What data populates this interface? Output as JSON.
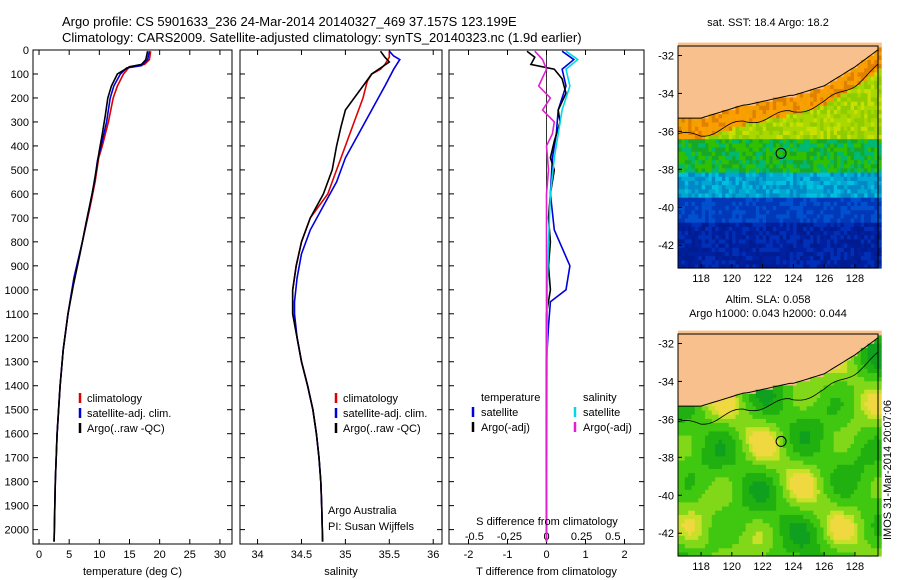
{
  "header": {
    "line1": "Argo profile: CS 5901633_236 24-Mar-2014 20140327_469 37.157S 123.199E",
    "line2": "Climatology: CARS2009. Satellite-adjusted climatology: synTS_20140323.nc (1.9d earlier)"
  },
  "colors": {
    "climatology": "#e00000",
    "satellite": "#0000dd",
    "argo": "#000000",
    "sat_sal": "#00d8e8",
    "argo_sal": "#e020d0",
    "land": "#f8c08c"
  },
  "chart_data": [
    {
      "type": "line",
      "id": "temperature",
      "xlabel": "temperature (deg C)",
      "xlim": [
        -1,
        32
      ],
      "xticks": [
        0,
        5,
        10,
        15,
        20,
        25,
        30
      ],
      "ylim": [
        0,
        2060
      ],
      "yticks": [
        0,
        100,
        200,
        300,
        400,
        500,
        600,
        700,
        800,
        900,
        1000,
        1100,
        1200,
        1300,
        1400,
        1500,
        1600,
        1700,
        1800,
        1900,
        2000
      ],
      "legend": [
        "climatology",
        "satellite-adj. clim.",
        "Argo(..raw -QC)"
      ],
      "series": [
        {
          "name": "climatology",
          "color": "climatology",
          "points": [
            [
              18.5,
              5
            ],
            [
              18.3,
              40
            ],
            [
              17.5,
              60
            ],
            [
              15.0,
              70
            ],
            [
              14.0,
              100
            ],
            [
              13.0,
              150
            ],
            [
              12.3,
              200
            ],
            [
              11.5,
              300
            ],
            [
              10.5,
              400
            ],
            [
              9.9,
              450
            ],
            [
              9.3,
              550
            ],
            [
              8.5,
              650
            ],
            [
              7.2,
              800
            ],
            [
              5.8,
              950
            ],
            [
              4.8,
              1100
            ],
            [
              4.0,
              1250
            ],
            [
              3.5,
              1400
            ],
            [
              3.0,
              1600
            ],
            [
              2.7,
              1800
            ],
            [
              2.5,
              2050
            ]
          ]
        },
        {
          "name": "satellite-adj. clim.",
          "color": "satellite",
          "points": [
            [
              18.3,
              5
            ],
            [
              18.0,
              40
            ],
            [
              17.0,
              65
            ],
            [
              14.5,
              75
            ],
            [
              13.5,
              100
            ],
            [
              12.4,
              150
            ],
            [
              11.8,
              200
            ],
            [
              11.2,
              300
            ],
            [
              10.3,
              400
            ],
            [
              9.7,
              460
            ],
            [
              9.2,
              550
            ],
            [
              8.4,
              650
            ],
            [
              7.2,
              800
            ],
            [
              5.8,
              950
            ],
            [
              4.8,
              1100
            ],
            [
              4.0,
              1250
            ],
            [
              3.5,
              1400
            ],
            [
              3.0,
              1600
            ],
            [
              2.7,
              1800
            ],
            [
              2.5,
              2050
            ]
          ]
        },
        {
          "name": "Argo(..raw -QC)",
          "color": "argo",
          "points": [
            [
              18.0,
              5
            ],
            [
              17.7,
              40
            ],
            [
              17.0,
              60
            ],
            [
              15.0,
              70
            ],
            [
              14.3,
              80
            ],
            [
              13.0,
              100
            ],
            [
              12.0,
              150
            ],
            [
              11.4,
              200
            ],
            [
              11.0,
              270
            ],
            [
              10.5,
              350
            ],
            [
              10.0,
              420
            ],
            [
              9.5,
              500
            ],
            [
              8.8,
              600
            ],
            [
              7.8,
              720
            ],
            [
              6.8,
              850
            ],
            [
              5.7,
              980
            ],
            [
              4.8,
              1100
            ],
            [
              4.0,
              1250
            ],
            [
              3.5,
              1400
            ],
            [
              3.0,
              1600
            ],
            [
              2.7,
              1800
            ],
            [
              2.5,
              2050
            ]
          ]
        }
      ]
    },
    {
      "type": "line",
      "id": "salinity",
      "xlabel": "salinity",
      "xlim": [
        33.8,
        36.1
      ],
      "xticks": [
        34,
        34.5,
        35,
        35.5,
        36
      ],
      "ylim": [
        0,
        2060
      ],
      "legend": [
        "climatology",
        "satellite-adj. clim.",
        "Argo(..raw -QC)"
      ],
      "annotation": [
        "Argo Australia",
        "PI: Susan Wijffels"
      ],
      "series": [
        {
          "name": "climatology",
          "color": "climatology",
          "points": [
            [
              35.5,
              5
            ],
            [
              35.5,
              30
            ],
            [
              35.45,
              60
            ],
            [
              35.4,
              80
            ],
            [
              35.3,
              100
            ],
            [
              35.25,
              130
            ],
            [
              35.2,
              200
            ],
            [
              35.1,
              300
            ],
            [
              35.0,
              400
            ],
            [
              34.9,
              500
            ],
            [
              34.8,
              600
            ],
            [
              34.6,
              700
            ],
            [
              34.5,
              800
            ],
            [
              34.44,
              900
            ],
            [
              34.4,
              1000
            ],
            [
              34.4,
              1100
            ],
            [
              34.45,
              1200
            ],
            [
              34.5,
              1300
            ],
            [
              34.57,
              1400
            ],
            [
              34.63,
              1500
            ],
            [
              34.67,
              1600
            ],
            [
              34.7,
              1700
            ],
            [
              34.72,
              1800
            ],
            [
              34.73,
              1900
            ],
            [
              34.74,
              2050
            ]
          ]
        },
        {
          "name": "satellite-adj. clim.",
          "color": "satellite",
          "points": [
            [
              35.5,
              5
            ],
            [
              35.55,
              25
            ],
            [
              35.62,
              40
            ],
            [
              35.55,
              80
            ],
            [
              35.45,
              150
            ],
            [
              35.3,
              250
            ],
            [
              35.15,
              350
            ],
            [
              35.0,
              450
            ],
            [
              34.9,
              550
            ],
            [
              34.75,
              650
            ],
            [
              34.6,
              750
            ],
            [
              34.5,
              850
            ],
            [
              34.45,
              950
            ],
            [
              34.42,
              1050
            ],
            [
              34.42,
              1100
            ],
            [
              34.45,
              1200
            ],
            [
              34.5,
              1300
            ],
            [
              34.57,
              1400
            ],
            [
              34.63,
              1500
            ],
            [
              34.67,
              1600
            ],
            [
              34.7,
              1700
            ],
            [
              34.72,
              1800
            ],
            [
              34.73,
              1900
            ],
            [
              34.74,
              2050
            ]
          ]
        },
        {
          "name": "Argo(..raw -QC)",
          "color": "argo",
          "points": [
            [
              35.4,
              5
            ],
            [
              35.45,
              30
            ],
            [
              35.5,
              50
            ],
            [
              35.4,
              75
            ],
            [
              35.3,
              100
            ],
            [
              35.2,
              150
            ],
            [
              35.1,
              200
            ],
            [
              35.0,
              250
            ],
            [
              34.95,
              320
            ],
            [
              34.9,
              400
            ],
            [
              34.85,
              500
            ],
            [
              34.75,
              600
            ],
            [
              34.6,
              700
            ],
            [
              34.5,
              800
            ],
            [
              34.44,
              900
            ],
            [
              34.4,
              1000
            ],
            [
              34.4,
              1100
            ],
            [
              34.45,
              1200
            ],
            [
              34.5,
              1300
            ],
            [
              34.57,
              1400
            ],
            [
              34.63,
              1500
            ],
            [
              34.67,
              1600
            ],
            [
              34.7,
              1700
            ],
            [
              34.72,
              1800
            ],
            [
              34.73,
              1900
            ],
            [
              34.74,
              2050
            ]
          ]
        }
      ]
    },
    {
      "type": "line",
      "id": "difference",
      "xlabel": "T difference from climatology",
      "xlabel_top": "S difference from climatology",
      "xlim": [
        -2.5,
        2.5
      ],
      "xticks": [
        -2,
        -1,
        0,
        1,
        2
      ],
      "xticks_top": [
        "-0.5",
        "-0.25",
        "0",
        "0.25",
        "0.5"
      ],
      "xticks_top_pos": [
        -1.85,
        -0.95,
        0,
        0.9,
        1.7
      ],
      "ylim": [
        0,
        2060
      ],
      "legend_groups": [
        {
          "title": "temperature",
          "entries": [
            "satellite",
            "Argo(-adj)"
          ]
        },
        {
          "title": "salinity",
          "entries": [
            "satellite",
            "Argo(-adj)"
          ]
        }
      ],
      "series": [
        {
          "name": "temperature satellite",
          "color": "satellite",
          "points": [
            [
              0.4,
              5
            ],
            [
              0.7,
              40
            ],
            [
              0.4,
              80
            ],
            [
              0.5,
              150
            ],
            [
              0.3,
              250
            ],
            [
              0.25,
              350
            ],
            [
              0.15,
              450
            ],
            [
              0.1,
              600
            ],
            [
              0.2,
              750
            ],
            [
              0.6,
              900
            ],
            [
              0.5,
              1000
            ],
            [
              0.1,
              1050
            ],
            [
              0.05,
              1150
            ],
            [
              0.0,
              1300
            ],
            [
              0.0,
              2050
            ]
          ]
        },
        {
          "name": "temperature Argo(-adj)",
          "color": "argo",
          "points": [
            [
              -0.5,
              5
            ],
            [
              -0.3,
              30
            ],
            [
              -0.4,
              60
            ],
            [
              0.2,
              80
            ],
            [
              0.4,
              120
            ],
            [
              0.5,
              180
            ],
            [
              0.3,
              250
            ],
            [
              0.35,
              300
            ],
            [
              0.2,
              380
            ],
            [
              0.1,
              450
            ],
            [
              0.2,
              500
            ],
            [
              0.1,
              600
            ],
            [
              0.05,
              700
            ],
            [
              0.1,
              800
            ],
            [
              0.05,
              900
            ],
            [
              0.1,
              1000
            ],
            [
              0.0,
              1100
            ],
            [
              0.0,
              2050
            ]
          ]
        },
        {
          "name": "salinity satellite",
          "color": "sat_sal",
          "points": [
            [
              0.5,
              5
            ],
            [
              0.8,
              40
            ],
            [
              0.5,
              80
            ],
            [
              0.6,
              150
            ],
            [
              0.4,
              250
            ],
            [
              0.3,
              350
            ],
            [
              0.2,
              450
            ],
            [
              0.1,
              600
            ],
            [
              0.05,
              800
            ],
            [
              0.02,
              1000
            ],
            [
              0.0,
              2050
            ]
          ]
        },
        {
          "name": "salinity Argo(-adj)",
          "color": "argo_sal",
          "points": [
            [
              -0.3,
              5
            ],
            [
              -0.1,
              40
            ],
            [
              0.0,
              80
            ],
            [
              -0.2,
              150
            ],
            [
              0.1,
              200
            ],
            [
              -0.1,
              250
            ],
            [
              0.2,
              300
            ],
            [
              0.15,
              350
            ],
            [
              0.0,
              400
            ],
            [
              0.05,
              500
            ],
            [
              0.0,
              600
            ],
            [
              0.0,
              2050
            ]
          ]
        }
      ]
    },
    {
      "type": "heatmap",
      "id": "sst_map",
      "title": "sat. SST: 18.4  Argo: 18.2",
      "xlim": [
        116.5,
        129.5
      ],
      "ylim": [
        -43.2,
        -31.5
      ],
      "xticks": [
        118,
        120,
        122,
        124,
        126,
        128
      ],
      "yticks": [
        -32,
        -34,
        -36,
        -38,
        -40,
        -42
      ],
      "marker": [
        123.2,
        -37.16
      ]
    },
    {
      "type": "heatmap",
      "id": "sla_map",
      "title": "Altim. SLA: 0.058",
      "subtitle": "Argo h1000: 0.043 h2000: 0.044",
      "xlim": [
        116.5,
        129.5
      ],
      "ylim": [
        -43.2,
        -31.5
      ],
      "xticks": [
        118,
        120,
        122,
        124,
        126,
        128
      ],
      "yticks": [
        -32,
        -34,
        -36,
        -38,
        -40,
        -42
      ],
      "marker": [
        123.2,
        -37.16
      ]
    }
  ],
  "footer": {
    "credit": "IMOS 31-Mar-2014 20:07:06"
  }
}
